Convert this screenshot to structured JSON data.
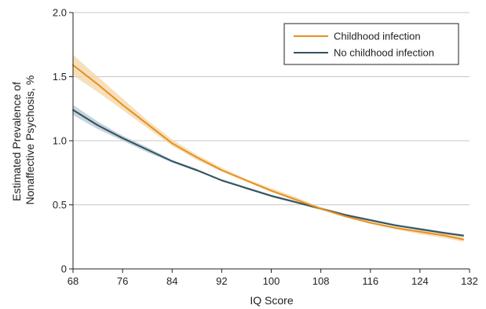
{
  "chart_data": {
    "type": "line",
    "xlabel": "IQ Score",
    "ylabel_lines": [
      "Estimated Prevalence of",
      "Nonaffective Psychosis, %"
    ],
    "x_ticks": [
      68,
      76,
      84,
      92,
      100,
      108,
      116,
      124,
      132
    ],
    "y_ticks": [
      0,
      0.5,
      1.0,
      1.5,
      2.0
    ],
    "y_tick_labels": [
      "0",
      "0.5",
      "1.0",
      "1.5",
      "2.0"
    ],
    "xlim": [
      68,
      132
    ],
    "ylim": [
      0,
      2.0
    ],
    "grid": "horizontal",
    "legend_position": "top-right",
    "series": [
      {
        "name": "Childhood infection",
        "color": "#e8901f",
        "band_color": "#f3d5a6",
        "x": [
          68,
          72,
          76,
          80,
          84,
          88,
          92,
          96,
          100,
          104,
          108,
          112,
          116,
          120,
          124,
          128,
          131
        ],
        "y": [
          1.59,
          1.44,
          1.28,
          1.13,
          0.98,
          0.87,
          0.77,
          0.69,
          0.61,
          0.54,
          0.47,
          0.41,
          0.36,
          0.32,
          0.29,
          0.26,
          0.23
        ],
        "y_lower": [
          1.51,
          1.38,
          1.24,
          1.1,
          0.96,
          0.85,
          0.76,
          0.68,
          0.6,
          0.53,
          0.46,
          0.4,
          0.35,
          0.31,
          0.27,
          0.24,
          0.21
        ],
        "y_upper": [
          1.67,
          1.5,
          1.33,
          1.16,
          1.01,
          0.89,
          0.79,
          0.7,
          0.63,
          0.56,
          0.48,
          0.42,
          0.37,
          0.33,
          0.3,
          0.28,
          0.25
        ]
      },
      {
        "name": "No childhood infection",
        "color": "#33515f",
        "band_color": "#b3c5d0",
        "x": [
          68,
          72,
          76,
          80,
          84,
          88,
          92,
          96,
          100,
          104,
          108,
          112,
          116,
          120,
          124,
          128,
          131
        ],
        "y": [
          1.24,
          1.12,
          1.02,
          0.93,
          0.84,
          0.77,
          0.69,
          0.63,
          0.57,
          0.52,
          0.47,
          0.42,
          0.38,
          0.34,
          0.31,
          0.28,
          0.26
        ],
        "y_lower": [
          1.2,
          1.09,
          1.0,
          0.91,
          0.83,
          0.76,
          0.69,
          0.62,
          0.56,
          0.51,
          0.46,
          0.42,
          0.38,
          0.34,
          0.3,
          0.27,
          0.25
        ],
        "y_upper": [
          1.28,
          1.15,
          1.04,
          0.95,
          0.85,
          0.78,
          0.7,
          0.64,
          0.58,
          0.53,
          0.48,
          0.43,
          0.39,
          0.35,
          0.32,
          0.29,
          0.27
        ]
      }
    ]
  }
}
